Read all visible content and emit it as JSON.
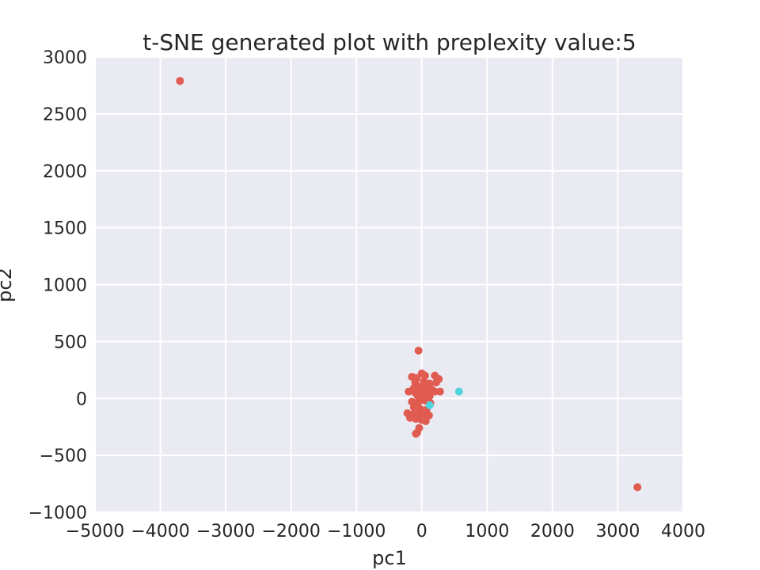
{
  "chart_data": {
    "type": "scatter",
    "title": "t-SNE generated plot with preplexity value:5",
    "xlabel": "pc1",
    "ylabel": "pc2",
    "xlim": [
      -5000,
      4000
    ],
    "ylim": [
      -1000,
      3000
    ],
    "x_ticks": [
      -5000,
      -4000,
      -3000,
      -2000,
      -1000,
      0,
      1000,
      2000,
      3000,
      4000
    ],
    "y_ticks": [
      -1000,
      -500,
      0,
      500,
      1000,
      1500,
      2000,
      2500,
      3000
    ],
    "x_tick_labels": [
      "−5000",
      "−4000",
      "−3000",
      "−2000",
      "−1000",
      "0",
      "1000",
      "2000",
      "3000",
      "4000"
    ],
    "y_tick_labels": [
      "−1000",
      "−500",
      "0",
      "500",
      "1000",
      "1500",
      "2000",
      "2500",
      "3000"
    ],
    "grid": true,
    "background": "#eaeaf2",
    "series": [
      {
        "color": "#e05b50",
        "points": [
          [
            -3700,
            2790
          ],
          [
            3300,
            -780
          ],
          [
            -50,
            420
          ],
          [
            -150,
            190
          ],
          [
            -80,
            180
          ],
          [
            0,
            220
          ],
          [
            50,
            200
          ],
          [
            200,
            200
          ],
          [
            260,
            170
          ],
          [
            -100,
            140
          ],
          [
            30,
            150
          ],
          [
            120,
            130
          ],
          [
            220,
            140
          ],
          [
            -120,
            90
          ],
          [
            -40,
            100
          ],
          [
            60,
            90
          ],
          [
            150,
            80
          ],
          [
            -200,
            60
          ],
          [
            -100,
            50
          ],
          [
            0,
            60
          ],
          [
            100,
            40
          ],
          [
            200,
            60
          ],
          [
            280,
            60
          ],
          [
            -60,
            20
          ],
          [
            40,
            10
          ],
          [
            120,
            20
          ],
          [
            -150,
            -30
          ],
          [
            -50,
            -30
          ],
          [
            50,
            -20
          ],
          [
            130,
            -40
          ],
          [
            -120,
            -80
          ],
          [
            -30,
            -90
          ],
          [
            70,
            -100
          ],
          [
            -220,
            -130
          ],
          [
            -130,
            -140
          ],
          [
            -50,
            -140
          ],
          [
            30,
            -150
          ],
          [
            110,
            -150
          ],
          [
            -180,
            -170
          ],
          [
            -90,
            -180
          ],
          [
            0,
            -190
          ],
          [
            60,
            -200
          ],
          [
            -40,
            -260
          ],
          [
            -70,
            -300
          ],
          [
            -90,
            -310
          ]
        ]
      },
      {
        "color": "#4fd4de",
        "points": [
          [
            570,
            60
          ],
          [
            120,
            -60
          ]
        ]
      }
    ]
  }
}
